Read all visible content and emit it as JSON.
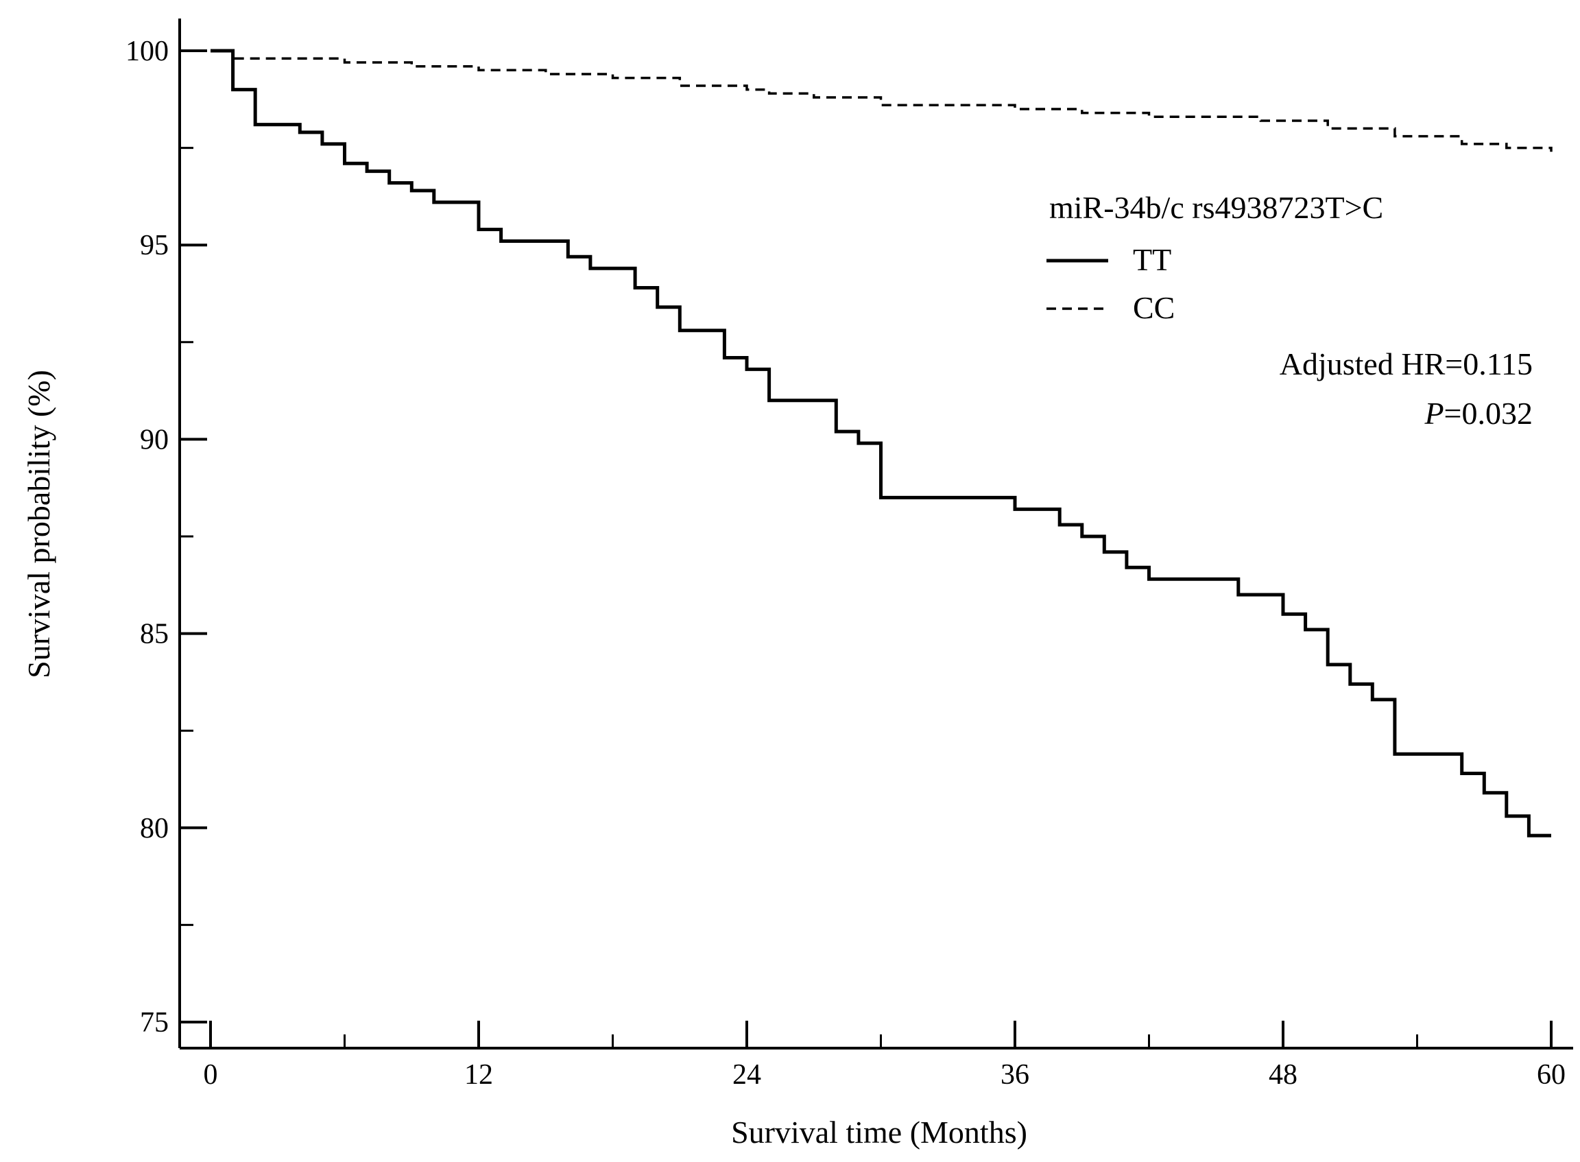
{
  "chart_data": {
    "type": "line",
    "subtype": "kaplan-meier-step",
    "xlabel": "Survival time (Months)",
    "ylabel": "Survival probability (%)",
    "xlim": [
      0,
      60
    ],
    "ylim": [
      75,
      100
    ],
    "x_ticks": [
      0,
      12,
      24,
      36,
      48,
      60
    ],
    "x_minor_step": 6,
    "y_ticks": [
      75,
      80,
      85,
      90,
      95,
      100
    ],
    "y_minor_step": 2.5,
    "grid": false,
    "legend": {
      "title": "miR-34b/c rs4938723T>C",
      "position": "top-right",
      "entries": [
        {
          "name": "TT",
          "style": "solid"
        },
        {
          "name": "CC",
          "style": "dashed"
        }
      ]
    },
    "annotations": {
      "hr": "Adjusted HR=0.115",
      "p_letter": "P",
      "p_value": "=0.032"
    },
    "series": [
      {
        "name": "TT",
        "style": "solid",
        "steps": [
          [
            0,
            100
          ],
          [
            1,
            99.0
          ],
          [
            2,
            98.1
          ],
          [
            4,
            97.9
          ],
          [
            5,
            97.6
          ],
          [
            6,
            97.1
          ],
          [
            7,
            96.9
          ],
          [
            8,
            96.6
          ],
          [
            9,
            96.4
          ],
          [
            10,
            96.1
          ],
          [
            12,
            95.4
          ],
          [
            13,
            95.1
          ],
          [
            16,
            94.7
          ],
          [
            17,
            94.4
          ],
          [
            19,
            93.9
          ],
          [
            20,
            93.4
          ],
          [
            21,
            92.8
          ],
          [
            23,
            92.1
          ],
          [
            24,
            91.8
          ],
          [
            25,
            91.0
          ],
          [
            28,
            90.2
          ],
          [
            29,
            89.9
          ],
          [
            30,
            88.5
          ],
          [
            36,
            88.2
          ],
          [
            38,
            87.8
          ],
          [
            39,
            87.5
          ],
          [
            40,
            87.1
          ],
          [
            41,
            86.7
          ],
          [
            42,
            86.4
          ],
          [
            46,
            86.0
          ],
          [
            48,
            85.5
          ],
          [
            49,
            85.1
          ],
          [
            50,
            84.2
          ],
          [
            51,
            83.7
          ],
          [
            52,
            83.3
          ],
          [
            53,
            81.9
          ],
          [
            56,
            81.4
          ],
          [
            57,
            80.9
          ],
          [
            58,
            80.3
          ],
          [
            59,
            79.8
          ],
          [
            60,
            79.8
          ]
        ]
      },
      {
        "name": "CC",
        "style": "dashed",
        "steps": [
          [
            0,
            100
          ],
          [
            1,
            99.8
          ],
          [
            6,
            99.7
          ],
          [
            9,
            99.6
          ],
          [
            12,
            99.5
          ],
          [
            15,
            99.4
          ],
          [
            18,
            99.3
          ],
          [
            21,
            99.1
          ],
          [
            24,
            99.0
          ],
          [
            25,
            98.9
          ],
          [
            27,
            98.8
          ],
          [
            30,
            98.6
          ],
          [
            36,
            98.5
          ],
          [
            39,
            98.4
          ],
          [
            42,
            98.3
          ],
          [
            47,
            98.2
          ],
          [
            50,
            98.0
          ],
          [
            53,
            97.8
          ],
          [
            56,
            97.6
          ],
          [
            58,
            97.5
          ],
          [
            60,
            97.4
          ]
        ]
      }
    ]
  }
}
